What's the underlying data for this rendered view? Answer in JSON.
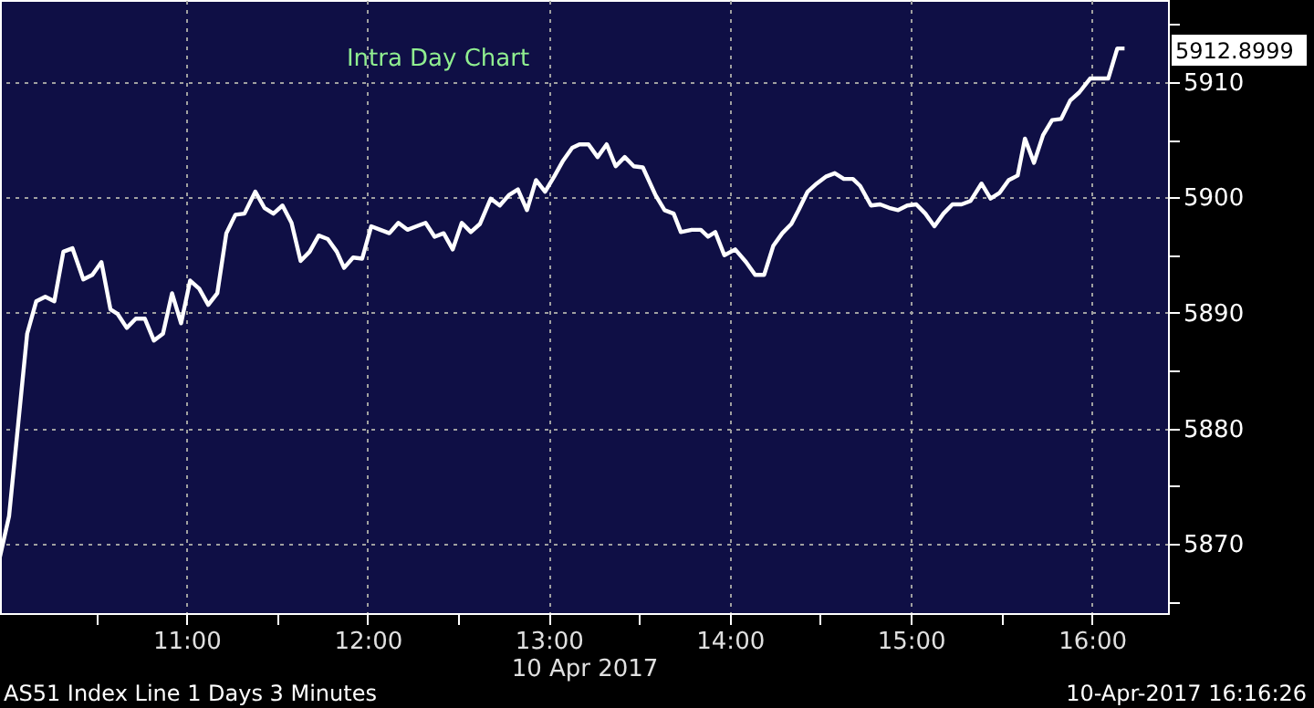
{
  "chart_data": {
    "type": "line",
    "title": "Intra Day Chart",
    "xlabel": "10 Apr 2017",
    "x": [
      9.97,
      10.02,
      10.07,
      10.12,
      10.17,
      10.22,
      10.27,
      10.32,
      10.37,
      10.43,
      10.48,
      10.53,
      10.58,
      10.62,
      10.67,
      10.72,
      10.77,
      10.82,
      10.87,
      10.92,
      10.97,
      11.02,
      11.07,
      11.12,
      11.17,
      11.22,
      11.27,
      11.32,
      11.38,
      11.43,
      11.48,
      11.53,
      11.58,
      11.63,
      11.68,
      11.73,
      11.78,
      11.83,
      11.87,
      11.92,
      11.97,
      12.02,
      12.07,
      12.12,
      12.17,
      12.22,
      12.27,
      12.32,
      12.37,
      12.42,
      12.47,
      12.52,
      12.57,
      12.62,
      12.68,
      12.73,
      12.78,
      12.83,
      12.88,
      12.93,
      12.98,
      13.03,
      13.08,
      13.13,
      13.17,
      13.22,
      13.27,
      13.32,
      13.37,
      13.42,
      13.47,
      13.52,
      13.59,
      13.64,
      13.69,
      13.73,
      13.79,
      13.84,
      13.88,
      13.92,
      13.97,
      14.03,
      14.09,
      14.14,
      14.19,
      14.24,
      14.29,
      14.34,
      14.38,
      14.43,
      14.48,
      14.53,
      14.58,
      14.63,
      14.68,
      14.72,
      14.78,
      14.83,
      14.88,
      14.93,
      14.98,
      15.03,
      15.08,
      15.13,
      15.18,
      15.23,
      15.28,
      15.33,
      15.39,
      15.44,
      15.49,
      15.54,
      15.59,
      15.63,
      15.68,
      15.73,
      15.78,
      15.83,
      15.88,
      15.93,
      15.99,
      16.09,
      16.14,
      16.18
    ],
    "series": [
      {
        "color": "#ffffff",
        "values": [
          5868.9,
          5872.4,
          5880.3,
          5888.2,
          5891.0,
          5891.4,
          5891.0,
          5895.3,
          5895.6,
          5892.9,
          5893.3,
          5894.4,
          5890.3,
          5889.9,
          5888.7,
          5889.5,
          5889.5,
          5887.6,
          5888.2,
          5891.7,
          5889.1,
          5892.8,
          5892.1,
          5890.7,
          5891.7,
          5896.9,
          5898.5,
          5898.6,
          5900.5,
          5899.1,
          5898.6,
          5899.3,
          5897.8,
          5894.5,
          5895.3,
          5896.7,
          5896.4,
          5895.3,
          5893.9,
          5894.8,
          5894.7,
          5897.5,
          5897.2,
          5896.9,
          5897.8,
          5897.2,
          5897.5,
          5897.8,
          5896.6,
          5896.9,
          5895.5,
          5897.8,
          5897.0,
          5897.7,
          5899.9,
          5899.3,
          5900.2,
          5900.7,
          5898.9,
          5901.5,
          5900.5,
          5901.8,
          5903.2,
          5904.3,
          5904.6,
          5904.6,
          5903.5,
          5904.6,
          5902.7,
          5903.5,
          5902.7,
          5902.6,
          5900.2,
          5898.9,
          5898.6,
          5897.0,
          5897.2,
          5897.2,
          5896.6,
          5897.0,
          5895.0,
          5895.5,
          5894.4,
          5893.3,
          5893.3,
          5895.8,
          5896.9,
          5897.7,
          5898.9,
          5900.5,
          5901.2,
          5901.8,
          5902.1,
          5901.6,
          5901.6,
          5901.0,
          5899.3,
          5899.4,
          5899.1,
          5898.9,
          5899.3,
          5899.4,
          5898.6,
          5897.5,
          5898.6,
          5899.4,
          5899.4,
          5899.7,
          5901.2,
          5899.9,
          5900.4,
          5901.5,
          5901.9,
          5905.1,
          5903.0,
          5905.4,
          5906.7,
          5906.8,
          5908.4,
          5909.1,
          5910.3,
          5910.3,
          5912.9,
          5912.9
        ]
      }
    ],
    "xlim": [
      9.97,
      16.42
    ],
    "xticks": [
      {
        "value": 10.5,
        "label": null
      },
      {
        "value": 11,
        "label": "11:00"
      },
      {
        "value": 11.5,
        "label": null
      },
      {
        "value": 12,
        "label": "12:00"
      },
      {
        "value": 12.5,
        "label": null
      },
      {
        "value": 13,
        "label": "13:00"
      },
      {
        "value": 13.5,
        "label": null
      },
      {
        "value": 14,
        "label": "14:00"
      },
      {
        "value": 14.5,
        "label": null
      },
      {
        "value": 15,
        "label": "15:00"
      },
      {
        "value": 15.5,
        "label": null
      },
      {
        "value": 16,
        "label": "16:00"
      }
    ],
    "ylim": [
      5864,
      5917.1
    ],
    "yticks": [
      {
        "value": 5865,
        "label": null
      },
      5870,
      {
        "value": 5875,
        "label": null
      },
      5880,
      {
        "value": 5885,
        "label": null
      },
      5890,
      {
        "value": 5895,
        "label": null
      },
      5900,
      {
        "value": 5905,
        "label": null
      },
      5910,
      {
        "value": 5915,
        "label": null
      }
    ],
    "grid": true,
    "line_style": "solid",
    "marker": "none",
    "annotations": [
      "5912.8999",
      "AS51 Index Line 1 Days 3 Minutes",
      "10-Apr-2017 16:16:26"
    ]
  }
}
